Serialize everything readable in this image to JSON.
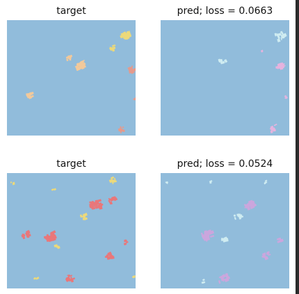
{
  "colors": {
    "background": "#91bcdb",
    "yellow": "#ecd97a",
    "peach": "#f2c99b",
    "salmon": "#e59a8c",
    "red": "#e9777a",
    "light_blue": "#cfecf1",
    "pink": "#e6b3de",
    "purple": "#cba6dd"
  },
  "panels": [
    {
      "title": "target",
      "kind": "target-1"
    },
    {
      "title": "pred; loss = 0.0663",
      "kind": "pred-1"
    },
    {
      "title": "target",
      "kind": "target-2"
    },
    {
      "title": "pred; loss = 0.0524",
      "kind": "pred-2"
    }
  ]
}
